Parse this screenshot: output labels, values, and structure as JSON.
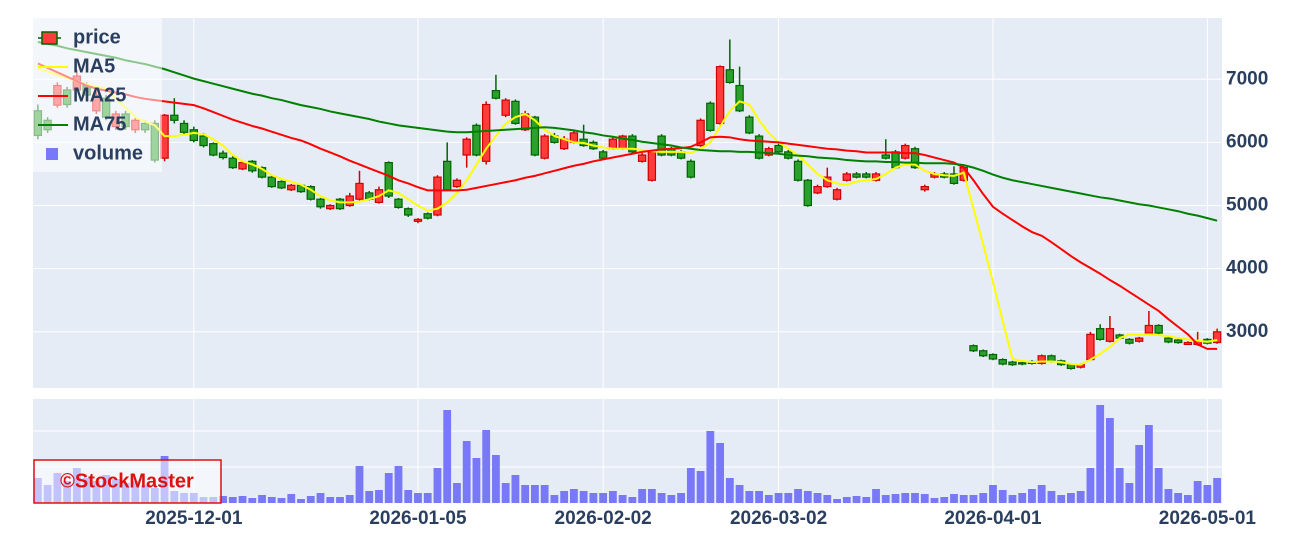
{
  "chart_data": [
    {
      "type": "candlestick",
      "name": "price",
      "increasing": {
        "color": "#ff3b3b",
        "line": "#d10000"
      },
      "decreasing": {
        "color": "#2ca02c",
        "line": "#006400"
      },
      "ylim": [
        2110,
        7970
      ],
      "yticks": [
        3000,
        4000,
        5000,
        6000,
        7000
      ],
      "grid": true,
      "legend": "top-left",
      "watermark": "©StockMaster",
      "categories": [
        null,
        null,
        null,
        null,
        null,
        null,
        null,
        null,
        null,
        null,
        null,
        null,
        null,
        null,
        null,
        null,
        "2025-12-01",
        null,
        null,
        null,
        null,
        null,
        null,
        null,
        null,
        null,
        null,
        null,
        null,
        null,
        null,
        null,
        null,
        null,
        null,
        null,
        null,
        null,
        null,
        "2026-01-05",
        null,
        null,
        null,
        null,
        null,
        null,
        null,
        null,
        null,
        null,
        null,
        null,
        null,
        null,
        null,
        null,
        null,
        null,
        "2026-02-02",
        null,
        null,
        null,
        null,
        null,
        null,
        null,
        null,
        null,
        null,
        null,
        null,
        null,
        null,
        null,
        null,
        null,
        "2026-03-02",
        null,
        null,
        null,
        null,
        null,
        null,
        null,
        null,
        null,
        null,
        null,
        null,
        null,
        null,
        null,
        null,
        null,
        null,
        null,
        null,
        null,
        "2026-04-01",
        null,
        null,
        null,
        null,
        null,
        null,
        null,
        null,
        null,
        null,
        null,
        null,
        null,
        null,
        null,
        null,
        null,
        null,
        null,
        null,
        null,
        "2026-05-01",
        null
      ],
      "open": [
        6500,
        6350,
        6590,
        6830,
        6830,
        6900,
        6500,
        6700,
        6250,
        6450,
        6200,
        6300,
        6300,
        5750,
        6430,
        6300,
        6200,
        6100,
        5980,
        5830,
        5750,
        5580,
        5700,
        5600,
        5450,
        5380,
        5250,
        5320,
        5300,
        5100,
        4950,
        5100,
        5000,
        5100,
        5200,
        5050,
        5680,
        5100,
        4950,
        4750,
        4870,
        4850,
        5700,
        5300,
        5800,
        6270,
        5700,
        6820,
        6430,
        6650,
        6200,
        6400,
        5750,
        6100,
        5900,
        6000,
        6050,
        6000,
        5850,
        5900,
        5900,
        6100,
        5700,
        5400,
        6100,
        5900,
        5850,
        5700,
        5950,
        6620,
        6300,
        7150,
        6900,
        6400,
        6100,
        5800,
        5950,
        5850,
        5700,
        5400,
        5200,
        5300,
        5100,
        5400,
        5500,
        5500,
        5400,
        5800,
        5850,
        5750,
        5900,
        5250,
        5450,
        5500,
        5500,
        5400,
        2780,
        2700,
        2640,
        2560,
        2520,
        2510,
        2530,
        2500,
        2620,
        2540,
        2480,
        2440,
        2560,
        3050,
        2850,
        2950,
        2880,
        2850,
        2980,
        3100,
        2900,
        2870,
        2800,
        2800,
        2880,
        2830
      ],
      "high": [
        6600,
        6400,
        6950,
        6880,
        7150,
        6950,
        6800,
        6750,
        6500,
        6500,
        6400,
        6350,
        6350,
        6450,
        6700,
        6350,
        6250,
        6150,
        6000,
        5870,
        5780,
        5700,
        5720,
        5620,
        5480,
        5400,
        5340,
        5340,
        5320,
        5120,
        5020,
        5120,
        5200,
        5550,
        5230,
        5300,
        5700,
        5120,
        4970,
        4800,
        4890,
        5480,
        6000,
        5430,
        6080,
        6300,
        6650,
        7070,
        6700,
        6680,
        6500,
        6420,
        6130,
        6150,
        6100,
        6200,
        6280,
        6030,
        5880,
        6080,
        6120,
        6130,
        5830,
        5880,
        6130,
        5930,
        5880,
        5730,
        6380,
        6650,
        7220,
        7630,
        7200,
        6430,
        6130,
        5930,
        5980,
        5880,
        5730,
        5420,
        5330,
        5600,
        5280,
        5530,
        5530,
        5530,
        5530,
        6050,
        5880,
        5980,
        5930,
        5330,
        5530,
        5530,
        5620,
        5630,
        2800,
        2720,
        2660,
        2580,
        2540,
        2530,
        2550,
        2640,
        2640,
        2560,
        2500,
        2500,
        3000,
        3120,
        3250,
        2970,
        2900,
        2920,
        3330,
        3120,
        2920,
        2890,
        2850,
        3000,
        2900,
        3050
      ],
      "low": [
        6050,
        6150,
        6550,
        6550,
        6800,
        6700,
        6450,
        6350,
        6200,
        6200,
        6150,
        6150,
        5680,
        5700,
        6300,
        6120,
        6000,
        5920,
        5780,
        5730,
        5580,
        5560,
        5520,
        5430,
        5280,
        5260,
        5230,
        5200,
        5080,
        4950,
        4930,
        4930,
        4980,
        5080,
        5080,
        5030,
        5120,
        4950,
        4820,
        4720,
        4780,
        4830,
        5230,
        5280,
        5600,
        5780,
        5650,
        6680,
        6400,
        6280,
        6180,
        5780,
        5730,
        5980,
        5880,
        5980,
        5930,
        5880,
        5720,
        5880,
        5880,
        5830,
        5680,
        5380,
        5780,
        5780,
        5730,
        5430,
        5930,
        6170,
        6280,
        6930,
        6480,
        6130,
        5730,
        5780,
        5830,
        5730,
        5380,
        4980,
        5180,
        5280,
        5080,
        5380,
        5430,
        5430,
        5380,
        5730,
        5580,
        5730,
        5580,
        5220,
        5430,
        5430,
        5330,
        5380,
        2680,
        2600,
        2550,
        2470,
        2460,
        2470,
        2480,
        2480,
        2510,
        2460,
        2400,
        2420,
        2550,
        2860,
        2830,
        2880,
        2800,
        2830,
        2960,
        2960,
        2820,
        2810,
        2790,
        2780,
        2800,
        2810
      ],
      "close": [
        6110,
        6200,
        6900,
        6600,
        7050,
        6750,
        6750,
        6400,
        6450,
        6250,
        6350,
        6200,
        5720,
        6430,
        6350,
        6160,
        6030,
        5950,
        5800,
        5760,
        5600,
        5680,
        5550,
        5450,
        5300,
        5280,
        5320,
        5220,
        5100,
        4980,
        5000,
        4950,
        5150,
        5350,
        5100,
        5250,
        5150,
        4970,
        4850,
        4780,
        4800,
        5450,
        5250,
        5400,
        6050,
        5800,
        6600,
        6700,
        6670,
        6300,
        6450,
        5800,
        6100,
        6000,
        6050,
        6150,
        5950,
        5900,
        5750,
        6050,
        6100,
        5850,
        5800,
        5850,
        5800,
        5800,
        5750,
        5450,
        6350,
        6190,
        7200,
        6950,
        6500,
        6150,
        5750,
        5900,
        5850,
        5750,
        5400,
        5000,
        5300,
        5450,
        5250,
        5500,
        5450,
        5450,
        5500,
        5750,
        5600,
        5950,
        5600,
        5300,
        5500,
        5450,
        5350,
        5600,
        2700,
        2620,
        2570,
        2490,
        2480,
        2490,
        2500,
        2620,
        2530,
        2480,
        2420,
        2480,
        2960,
        2880,
        3050,
        2900,
        2820,
        2900,
        3100,
        2980,
        2840,
        2830,
        2830,
        2850,
        2820,
        3000
      ],
      "series": [
        {
          "name": "MA5",
          "color": "#ffff00",
          "values": [
            7170,
            7120,
            7070,
            7020,
            6970,
            6920,
            6880,
            6850,
            6700,
            6550,
            6400,
            6330,
            6270,
            6100,
            6100,
            6120,
            6150,
            6130,
            6050,
            5950,
            5800,
            5700,
            5650,
            5580,
            5480,
            5420,
            5380,
            5330,
            5250,
            5150,
            5080,
            5050,
            5050,
            5060,
            5100,
            5150,
            5240,
            5200,
            5100,
            5000,
            4920,
            4950,
            5050,
            5200,
            5400,
            5650,
            5900,
            6100,
            6300,
            6400,
            6450,
            6350,
            6200,
            6100,
            6050,
            6000,
            5990,
            5950,
            5920,
            5900,
            5900,
            5900,
            5880,
            5860,
            5850,
            5850,
            5850,
            5830,
            5900,
            6000,
            6250,
            6500,
            6650,
            6600,
            6350,
            6150,
            6000,
            5900,
            5800,
            5650,
            5500,
            5400,
            5350,
            5330,
            5380,
            5400,
            5420,
            5500,
            5600,
            5650,
            5650,
            5550,
            5500,
            5480,
            5470,
            5520,
            4950,
            4380,
            3790,
            3170,
            2570,
            2540,
            2520,
            2530,
            2530,
            2520,
            2490,
            2480,
            2560,
            2650,
            2760,
            2900,
            2960,
            2950,
            2960,
            2950,
            2930,
            2900,
            2880,
            2860,
            2840,
            2870
          ]
        },
        {
          "name": "MA25",
          "color": "#ff0000",
          "values": [
            7250,
            7180,
            7110,
            7040,
            6970,
            6900,
            6850,
            6820,
            6790,
            6760,
            6720,
            6690,
            6670,
            6650,
            6630,
            6610,
            6590,
            6540,
            6480,
            6420,
            6360,
            6310,
            6260,
            6220,
            6170,
            6120,
            6070,
            6030,
            5970,
            5900,
            5840,
            5780,
            5710,
            5650,
            5590,
            5530,
            5470,
            5400,
            5350,
            5290,
            5240,
            5240,
            5240,
            5240,
            5250,
            5280,
            5310,
            5340,
            5370,
            5400,
            5440,
            5470,
            5510,
            5550,
            5590,
            5630,
            5660,
            5700,
            5730,
            5760,
            5790,
            5820,
            5850,
            5870,
            5890,
            5900,
            5910,
            5930,
            6000,
            6080,
            6090,
            6080,
            6050,
            6030,
            6020,
            6010,
            6000,
            5980,
            5960,
            5940,
            5920,
            5900,
            5890,
            5870,
            5860,
            5840,
            5840,
            5840,
            5840,
            5830,
            5830,
            5800,
            5760,
            5720,
            5680,
            5600,
            5400,
            5180,
            4980,
            4870,
            4770,
            4670,
            4580,
            4520,
            4420,
            4310,
            4200,
            4100,
            4010,
            3920,
            3820,
            3730,
            3630,
            3530,
            3430,
            3330,
            3200,
            3080,
            2960,
            2800,
            2730,
            2730
          ]
        },
        {
          "name": "MA75",
          "color": "#008000",
          "values": [
            7590,
            7560,
            7530,
            7490,
            7460,
            7430,
            7400,
            7370,
            7340,
            7300,
            7270,
            7240,
            7200,
            7160,
            7110,
            7060,
            7010,
            6970,
            6930,
            6890,
            6850,
            6810,
            6770,
            6740,
            6700,
            6670,
            6630,
            6590,
            6560,
            6530,
            6490,
            6460,
            6430,
            6400,
            6370,
            6330,
            6300,
            6270,
            6250,
            6230,
            6210,
            6190,
            6170,
            6160,
            6160,
            6170,
            6180,
            6190,
            6200,
            6210,
            6220,
            6230,
            6240,
            6230,
            6210,
            6190,
            6160,
            6140,
            6110,
            6090,
            6060,
            6040,
            6010,
            5990,
            5970,
            5950,
            5920,
            5900,
            5880,
            5870,
            5860,
            5860,
            5850,
            5850,
            5840,
            5830,
            5820,
            5800,
            5790,
            5780,
            5760,
            5750,
            5740,
            5720,
            5710,
            5700,
            5700,
            5690,
            5690,
            5680,
            5680,
            5670,
            5670,
            5670,
            5660,
            5640,
            5600,
            5550,
            5490,
            5440,
            5400,
            5370,
            5340,
            5310,
            5280,
            5250,
            5220,
            5190,
            5160,
            5130,
            5110,
            5080,
            5050,
            5020,
            5000,
            4970,
            4940,
            4910,
            4870,
            4840,
            4800,
            4760
          ]
        }
      ]
    },
    {
      "type": "bar",
      "name": "volume",
      "color": "#7878f8",
      "ylim": [
        0,
        104
      ],
      "yticks": [
        0,
        36,
        72
      ],
      "grid": true,
      "values": [
        25,
        18,
        30,
        22,
        35,
        25,
        22,
        28,
        24,
        20,
        22,
        18,
        15,
        47,
        12,
        10,
        10,
        6,
        6,
        7,
        6,
        7,
        5,
        8,
        6,
        5,
        9,
        4,
        7,
        10,
        6,
        6,
        8,
        37,
        12,
        13,
        30,
        37,
        13,
        10,
        10,
        35,
        93,
        20,
        62,
        45,
        73,
        48,
        20,
        28,
        18,
        18,
        18,
        8,
        12,
        14,
        12,
        10,
        10,
        12,
        8,
        6,
        14,
        14,
        10,
        8,
        10,
        35,
        32,
        72,
        60,
        25,
        18,
        12,
        12,
        8,
        10,
        10,
        14,
        12,
        10,
        8,
        4,
        6,
        7,
        6,
        14,
        8,
        9,
        10,
        10,
        9,
        5,
        6,
        9,
        8,
        8,
        10,
        18,
        13,
        8,
        10,
        14,
        18,
        12,
        8,
        10,
        12,
        35,
        98,
        85,
        35,
        20,
        58,
        78,
        35,
        14,
        10,
        8,
        22,
        18,
        25
      ]
    }
  ]
}
